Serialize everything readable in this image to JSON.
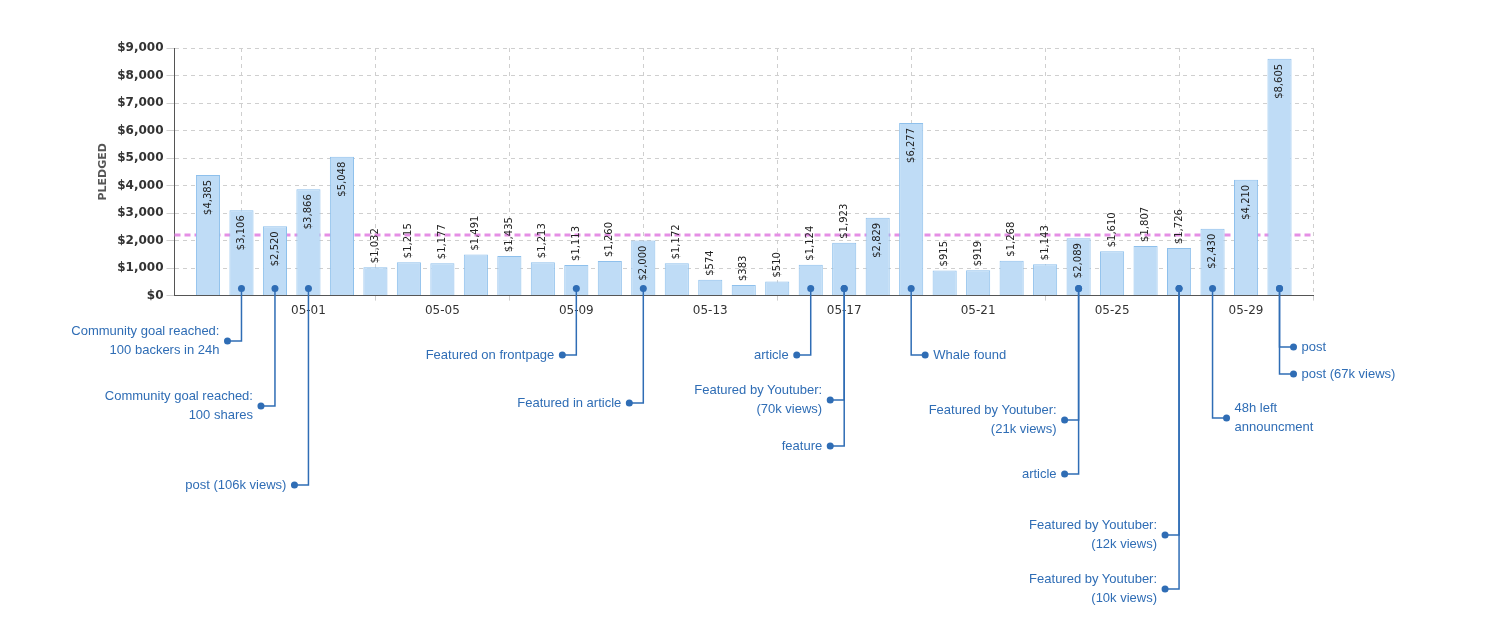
{
  "chart_data": {
    "type": "bar",
    "ylabel": "PLEDGED",
    "x": [
      "--04-28",
      "--04-29",
      "--04-30",
      "--05-01",
      "--05-02",
      "--05-03",
      "--05-04",
      "--05-05",
      "--05-06",
      "--05-07",
      "--05-08",
      "--05-09",
      "--05-10",
      "--05-11",
      "--05-12",
      "--05-13",
      "--05-14",
      "--05-15",
      "--05-16",
      "--05-17",
      "--05-18",
      "--05-19",
      "--05-20",
      "--05-21",
      "--05-22",
      "--05-23",
      "--05-24",
      "--05-25",
      "--05-26",
      "--05-27",
      "--05-28",
      "--05-29",
      "--05-30"
    ],
    "values": [
      4385,
      3106,
      2520,
      3866,
      5048,
      1032,
      1215,
      1177,
      1491,
      1435,
      1213,
      1113,
      1260,
      2000,
      1172,
      574,
      383,
      510,
      1124,
      1923,
      2829,
      6277,
      915,
      919,
      1268,
      1143,
      2089,
      1610,
      1807,
      1726,
      2430,
      4210,
      8605
    ],
    "value_labels": [
      "$4,385",
      "$3,106",
      "$2,520",
      "$3,866",
      "$5,048",
      "$1,032",
      "$1,215",
      "$1,177",
      "$1,491",
      "$1,435",
      "$1,213",
      "$1,113",
      "$1,260",
      "$2,000",
      "$1,172",
      "$574",
      "$383",
      "$510",
      "$1,124",
      "$1,923",
      "$2,829",
      "$6,277",
      "$915",
      "$919",
      "$1,268",
      "$1,143",
      "$2,089",
      "$1,610",
      "$1,807",
      "$1,726",
      "$2,430",
      "$4,210",
      "$8,605"
    ],
    "color": "#bfdcf6",
    "xlim": [
      "--04-27",
      "--05-31"
    ],
    "xticks": [
      {
        "value": "--05-01",
        "label": "05-01"
      },
      {
        "value": "--05-05",
        "label": "05-05"
      },
      {
        "value": "--05-09",
        "label": "05-09"
      },
      {
        "value": "--05-13",
        "label": "05-13"
      },
      {
        "value": "--05-17",
        "label": "05-17"
      },
      {
        "value": "--05-21",
        "label": "05-21"
      },
      {
        "value": "--05-25",
        "label": "05-25"
      },
      {
        "value": "--05-29",
        "label": "05-29"
      }
    ],
    "ylim": [
      0,
      9000
    ],
    "yticks": [
      {
        "value": 0,
        "label": "$0"
      },
      {
        "value": 1000,
        "label": "$1,000"
      },
      {
        "value": 2000,
        "label": "$2,000"
      },
      {
        "value": 3000,
        "label": "$3,000"
      },
      {
        "value": 4000,
        "label": "$4,000"
      },
      {
        "value": 5000,
        "label": "$5,000"
      },
      {
        "value": 6000,
        "label": "$6,000"
      },
      {
        "value": 7000,
        "label": "$7,000"
      },
      {
        "value": 8000,
        "label": "$8,000"
      },
      {
        "value": 9000,
        "label": "$9,000"
      }
    ],
    "grid": true,
    "legend": false,
    "ref_lines": [
      {
        "axis": "y",
        "value": 2200,
        "color": "#e58fe5",
        "line_style": "dashed"
      }
    ],
    "annotations": [
      {
        "text": "Community goal reached:\n100 backers in 24h",
        "x": "--04-29",
        "y": 0
      },
      {
        "text": "Community goal reached:\n100 shares",
        "x": "--04-30",
        "y": 0
      },
      {
        "text": "post (106k views)",
        "x": "--05-01",
        "y": 0
      },
      {
        "text": "Featured on frontpage",
        "x": "--05-09",
        "y": 0
      },
      {
        "text": "Featured in article",
        "x": "--05-11",
        "y": 0
      },
      {
        "text": "article",
        "x": "--05-16",
        "y": 0
      },
      {
        "text": "Featured by Youtuber:\n(70k views)",
        "x": "--05-17",
        "y": 0
      },
      "feature",
      {
        "text": "Whale found",
        "x": "--05-19",
        "y": 0
      },
      {
        "text": "Featured by Youtuber:\n(21k views)",
        "x": "--05-24",
        "y": 0
      },
      "article",
      {
        "text": "Featured by Youtuber:\n(12k views)",
        "x": "--05-27",
        "y": 0
      },
      "Featured by Youtuber:\n(10k views)",
      {
        "text": "48h left\nannouncment",
        "x": "--05-28",
        "y": 0
      },
      {
        "text": "post",
        "x": "--05-30",
        "y": 0
      },
      "post (67k views)"
    ]
  }
}
